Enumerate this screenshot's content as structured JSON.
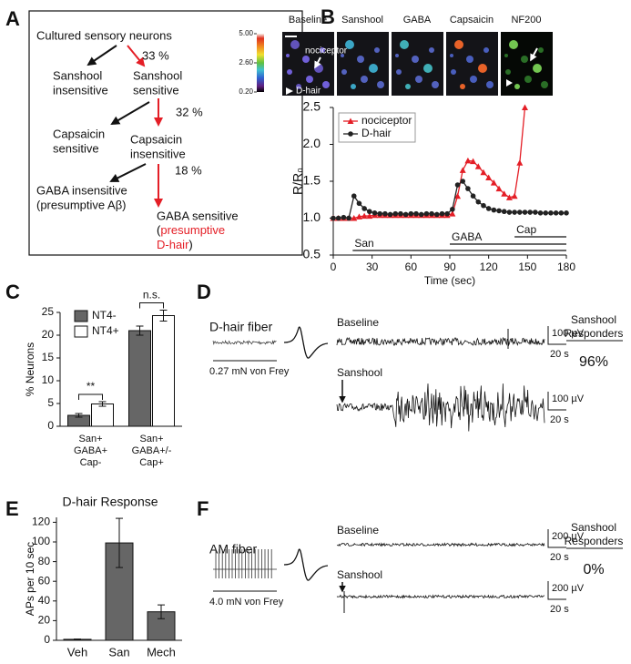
{
  "panel_labels": [
    "A",
    "B",
    "C",
    "D",
    "E",
    "F"
  ],
  "flowchart": {
    "nodes": [
      {
        "lines": [
          "Cultured sensory neurons"
        ]
      },
      {
        "lines": [
          "Sanshool",
          "insensitive"
        ]
      },
      {
        "lines": [
          "Sanshool",
          "sensitive"
        ]
      },
      {
        "lines": [
          "Capsaicin",
          "sensitive"
        ]
      },
      {
        "lines": [
          "Capsaicin",
          "insensitive"
        ]
      },
      {
        "lines": [
          "GABA insensitive",
          "(presumptive Aβ)"
        ]
      },
      {
        "lines": [
          "GABA sensitive",
          [
            {
              "text": "(",
              "color": "#000000"
            },
            {
              "text": "presumptive",
              "color": "#e41e26"
            }
          ],
          [
            {
              "text": "D-hair",
              "color": "#e41e26"
            },
            {
              "text": ")",
              "color": "#000000"
            }
          ]
        ]
      }
    ],
    "percentages": [
      "33 %",
      "32 %",
      "18 %"
    ]
  },
  "imaging": {
    "colorbar": {
      "ticks": [
        {
          "value": 5,
          "label": "5.00"
        },
        {
          "value": 2.6,
          "label": "2.60"
        },
        {
          "value": 0.2,
          "label": "0.20"
        }
      ]
    },
    "images": [
      "Baseline",
      "Sanshool",
      "GABA",
      "Capsaicin",
      "NF200"
    ],
    "annotations": [
      "nociceptor",
      "D-hair"
    ]
  },
  "chart_data": [
    {
      "type": "line",
      "x": [
        0,
        4,
        8,
        12,
        16,
        20,
        24,
        28,
        32,
        36,
        40,
        44,
        48,
        52,
        56,
        60,
        64,
        68,
        72,
        76,
        80,
        84,
        88,
        92,
        96,
        100,
        104,
        108,
        112,
        116,
        120,
        124,
        128,
        132,
        136,
        140,
        144,
        148,
        152,
        156,
        160,
        164,
        168,
        172,
        176,
        180
      ],
      "series": [
        {
          "name": "nociceptor",
          "color": "#e41e26",
          "marker": "triangle",
          "values": [
            1.0,
            1.0,
            1.0,
            1.0,
            1.0,
            1.02,
            1.03,
            1.03,
            1.04,
            1.04,
            1.04,
            1.04,
            1.04,
            1.04,
            1.04,
            1.04,
            1.04,
            1.04,
            1.04,
            1.04,
            1.04,
            1.04,
            1.04,
            1.06,
            1.3,
            1.65,
            1.78,
            1.77,
            1.7,
            1.62,
            1.55,
            1.48,
            1.4,
            1.33,
            1.28,
            1.3,
            1.75,
            2.5,
            null,
            null,
            null,
            null,
            null,
            null,
            null,
            null
          ]
        },
        {
          "name": "D-hair",
          "color": "#222222",
          "marker": "circle",
          "values": [
            1.0,
            1.0,
            1.01,
            1.0,
            1.3,
            1.2,
            1.13,
            1.09,
            1.07,
            1.06,
            1.06,
            1.05,
            1.06,
            1.06,
            1.05,
            1.06,
            1.06,
            1.05,
            1.06,
            1.06,
            1.05,
            1.06,
            1.06,
            1.12,
            1.45,
            1.5,
            1.4,
            1.3,
            1.22,
            1.17,
            1.13,
            1.11,
            1.1,
            1.09,
            1.08,
            1.08,
            1.08,
            1.08,
            1.08,
            1.08,
            1.07,
            1.07,
            1.07,
            1.07,
            1.07,
            1.07
          ]
        }
      ],
      "xlim": [
        0,
        180
      ],
      "xticks": [
        0,
        30,
        60,
        90,
        120,
        150,
        180
      ],
      "ylim": [
        0.5,
        2.5
      ],
      "yticks": [
        0.5,
        {
          "value": 1,
          "label": "1.0"
        },
        1.5,
        {
          "value": 2,
          "label": "2.0"
        },
        2.5
      ],
      "xlabel": "Time (sec)",
      "ylabel": "R/R₀",
      "legend": "upper left",
      "stimuli": [
        {
          "label": "San",
          "start": 15,
          "end": 180
        },
        {
          "label": "GABA",
          "start": 90,
          "end": 180
        },
        {
          "label": "Cap",
          "start": 140,
          "end": 180
        }
      ]
    },
    {
      "type": "bar",
      "categories": [
        [
          "San+",
          "GABA+",
          "Cap-"
        ],
        [
          "San+",
          "GABA+/-",
          "Cap+"
        ]
      ],
      "series": [
        {
          "name": "NT4-",
          "color": "#666666",
          "values": [
            2.4,
            21
          ],
          "errors": [
            0.4,
            1
          ]
        },
        {
          "name": "NT4+",
          "color": "#ffffff",
          "values": [
            4.9,
            24.3
          ],
          "errors": [
            0.5,
            1.2
          ]
        }
      ],
      "ylim": [
        0,
        25
      ],
      "yticks": [
        0,
        5,
        10,
        15,
        20,
        25
      ],
      "ylabel": "% Neurons",
      "legend": "upper left",
      "significance": [
        "**",
        "n.s."
      ]
    },
    {
      "type": "bar",
      "title": "D-hair Response",
      "categories": [
        "Veh",
        "San",
        "Mech"
      ],
      "color": "#666666",
      "values": [
        1,
        99,
        29
      ],
      "errors": [
        0.3,
        25,
        7
      ],
      "ylim": [
        0,
        125
      ],
      "yticks": [
        0,
        20,
        40,
        60,
        80,
        100,
        120
      ],
      "ylabel": "APs per 10 sec"
    }
  ],
  "recordings": [
    {
      "fiber": "D-hair fiber",
      "stimulus": "0.27 mN von Frey",
      "conditions": [
        "Baseline",
        "Sanshool"
      ],
      "amplitude_scale": "100 µV",
      "time_scale": "20 s",
      "responders_title": [
        "Sanshool",
        "Responders"
      ],
      "responders": "96%"
    },
    {
      "fiber": "AM fiber",
      "stimulus": "4.0 mN von Frey",
      "conditions": [
        "Baseline",
        "Sanshool"
      ],
      "amplitude_scale": "200 µV",
      "time_scale": "20 s",
      "responders_title": [
        "Sanshool",
        "Responders"
      ],
      "responders": "0%"
    }
  ]
}
